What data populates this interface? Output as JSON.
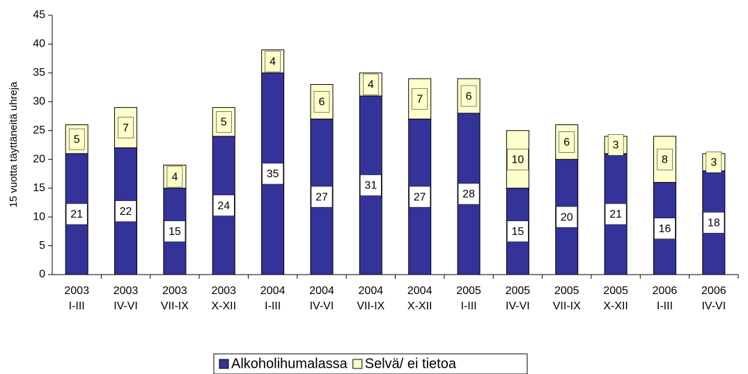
{
  "chart_data": {
    "type": "stacked_bar",
    "y_label": "15 vuotta täyttäneitä uhreja",
    "categories": [
      [
        "2003",
        "I-III"
      ],
      [
        "2003",
        "IV-VI"
      ],
      [
        "2003",
        "VII-IX"
      ],
      [
        "2003",
        "X-XII"
      ],
      [
        "2004",
        "I-III"
      ],
      [
        "2004",
        "IV-VI"
      ],
      [
        "2004",
        "VII-IX"
      ],
      [
        "2004",
        "X-XII"
      ],
      [
        "2005",
        "I-III"
      ],
      [
        "2005",
        "IV-VI"
      ],
      [
        "2005",
        "VII-IX"
      ],
      [
        "2005",
        "X-XII"
      ],
      [
        "2006",
        "I-III"
      ],
      [
        "2006",
        "IV-VI"
      ]
    ],
    "series": [
      {
        "name": "Alkoholihumalassa",
        "color": "#333399",
        "label_bg": "#ffffff",
        "values": [
          21,
          22,
          15,
          24,
          35,
          27,
          31,
          27,
          28,
          15,
          20,
          21,
          16,
          18
        ]
      },
      {
        "name": "Selvä/ ei tietoa",
        "color": "#ffffcc",
        "label_bg": "#ffffcc",
        "values": [
          5,
          7,
          4,
          5,
          4,
          6,
          4,
          7,
          6,
          10,
          6,
          3,
          8,
          3
        ]
      }
    ],
    "ylim": [
      0,
      45
    ],
    "yticks": [
      0,
      5,
      10,
      15,
      20,
      25,
      30,
      35,
      40,
      45
    ],
    "grid": false,
    "legend": "bottom"
  }
}
